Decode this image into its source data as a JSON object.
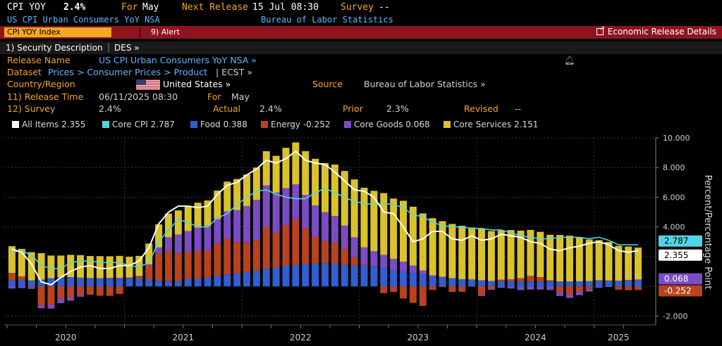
{
  "header": {
    "ticker": "CPI YOY",
    "value": "2.4%",
    "for_label": "For",
    "for_value": "May",
    "next_release_label": "Next Release",
    "next_release_value": "15 Jul 08:30",
    "survey_label": "Survey",
    "survey_value": "--",
    "subtitle": "US CPI Urban Consumers YoY NSA",
    "source_name": "Bureau of Labor Statistics"
  },
  "toolbar": {
    "tab_label": "CPI YOY Index",
    "alert_label": "9) Alert",
    "econ_label": "Economic Release Details"
  },
  "desc_bar": {
    "security_desc": "1) Security Description",
    "des": "DES »"
  },
  "info": {
    "release_name_label": "Release Name",
    "release_name_value": "US CPI Urban Consumers YoY NSA »",
    "dataset_label": "Dataset",
    "dataset_value": "Prices > Consumer Prices > Product",
    "dataset_suffix": "| ECST »",
    "country_label": "Country/Region",
    "country_value": "United States »",
    "source_label": "Source",
    "source_value": "Bureau of Labor Statistics »",
    "release_time_label": "11) Release Time",
    "release_time_value": "06/11/2025 08:30",
    "for_label": "For",
    "for_value": "May",
    "survey_label": "12) Survey",
    "survey_value": "2.4%",
    "actual_label": "Actual",
    "actual_value": "2.4%",
    "prior_label": "Prior",
    "prior_value": "2.3%",
    "revised_label": "Revised",
    "revised_value": "--"
  },
  "legend": [
    {
      "label": "All Items 2.355",
      "color": "#ffffff"
    },
    {
      "label": "Core CPI 2.787",
      "color": "#4fd6e6"
    },
    {
      "label": "Food 0.388",
      "color": "#2f5fd0"
    },
    {
      "label": "Energy -0.252",
      "color": "#b8431e"
    },
    {
      "label": "Core Goods 0.068",
      "color": "#7b4cc4"
    },
    {
      "label": "Core Services 2.151",
      "color": "#d9c22c"
    }
  ],
  "chart_data": {
    "type": "bar",
    "title": "",
    "ylabel": "Percent/Percentage Point",
    "ylim": [
      -2.6,
      10.0
    ],
    "y_ticks": [
      "10.000",
      "8.000",
      "6.000",
      "4.000",
      "2.000",
      "-2.000"
    ],
    "x_ticks": [
      "2020",
      "2021",
      "2022",
      "2023",
      "2024",
      "2025"
    ],
    "start": "2020-01",
    "end": "2025-05",
    "series": [
      {
        "name": "Food",
        "color": "#2f5fd0",
        "values": [
          0.42,
          0.41,
          0.4,
          0.45,
          0.55,
          0.62,
          0.62,
          0.58,
          0.56,
          0.55,
          0.52,
          0.52,
          0.52,
          0.5,
          0.48,
          0.4,
          0.35,
          0.34,
          0.48,
          0.5,
          0.58,
          0.72,
          0.8,
          0.86,
          0.96,
          1.06,
          1.18,
          1.26,
          1.38,
          1.44,
          1.5,
          1.54,
          1.56,
          1.52,
          1.42,
          1.4,
          1.38,
          1.3,
          1.22,
          1.1,
          0.98,
          0.9,
          0.78,
          0.64,
          0.58,
          0.52,
          0.48,
          0.44,
          0.4,
          0.36,
          0.35,
          0.34,
          0.33,
          0.32,
          0.32,
          0.33,
          0.33,
          0.33,
          0.34,
          0.35,
          0.37,
          0.37,
          0.38,
          0.38,
          0.39
        ]
      },
      {
        "name": "Energy",
        "color": "#b8431e",
        "values": [
          0.48,
          0.26,
          -0.05,
          -1.28,
          -1.22,
          -0.82,
          -0.75,
          -0.58,
          -0.52,
          -0.62,
          -0.64,
          -0.52,
          0.02,
          0.15,
          0.9,
          1.82,
          2.05,
          1.9,
          1.82,
          1.85,
          1.86,
          2.16,
          2.4,
          2.12,
          2.0,
          2.06,
          2.82,
          2.35,
          2.73,
          3.08,
          2.4,
          1.81,
          1.48,
          1.42,
          1.12,
          0.58,
          0.06,
          0.02,
          -0.46,
          -0.38,
          -0.82,
          -1.12,
          -1.32,
          -0.25,
          -0.05,
          -0.38,
          -0.36,
          -0.02,
          -0.58,
          -0.16,
          0.1,
          0.14,
          0.22,
          0.38,
          0.3,
          0.08,
          -0.4,
          -0.54,
          -0.38,
          -0.2,
          0.04,
          0.02,
          -0.22,
          -0.26,
          -0.25
        ]
      },
      {
        "name": "Core Goods",
        "color": "#7b4cc4",
        "values": [
          -0.15,
          -0.12,
          -0.12,
          -0.2,
          -0.28,
          -0.32,
          -0.22,
          -0.12,
          -0.05,
          -0.02,
          0.05,
          0.05,
          0.05,
          0.05,
          0.1,
          0.4,
          0.9,
          1.25,
          1.42,
          1.6,
          1.62,
          1.65,
          1.85,
          2.15,
          2.45,
          2.7,
          2.8,
          2.7,
          2.5,
          2.35,
          2.25,
          2.1,
          1.95,
          1.8,
          1.55,
          1.32,
          1.18,
          1.05,
          0.9,
          0.75,
          0.68,
          0.5,
          0.28,
          0.1,
          0.06,
          0.02,
          -0.02,
          0.02,
          -0.08,
          -0.08,
          -0.1,
          -0.15,
          -0.25,
          -0.22,
          -0.22,
          -0.25,
          -0.25,
          -0.24,
          -0.22,
          -0.15,
          -0.1,
          -0.05,
          -0.02,
          0.05,
          0.07
        ]
      },
      {
        "name": "Core Services",
        "color": "#d9c22c",
        "values": [
          1.8,
          1.85,
          1.9,
          1.78,
          1.52,
          1.45,
          1.5,
          1.52,
          1.48,
          1.48,
          1.45,
          1.48,
          1.4,
          1.35,
          1.4,
          1.55,
          1.6,
          1.62,
          1.68,
          1.68,
          1.72,
          1.92,
          2.0,
          2.1,
          2.12,
          2.18,
          2.3,
          2.48,
          2.72,
          2.82,
          2.95,
          3.14,
          3.31,
          3.46,
          3.68,
          3.9,
          4.02,
          4.06,
          4.16,
          4.06,
          4.1,
          3.96,
          3.85,
          3.85,
          3.75,
          3.66,
          3.6,
          3.5,
          3.48,
          3.36,
          3.31,
          3.31,
          3.2,
          3.1,
          3.05,
          3.06,
          3.13,
          3.08,
          2.97,
          2.8,
          2.7,
          2.6,
          2.35,
          2.25,
          2.15
        ]
      },
      {
        "name": "All Items",
        "color": "#ffffff",
        "type": "line",
        "values": [
          2.5,
          2.3,
          1.5,
          0.3,
          0.1,
          0.6,
          1.0,
          1.3,
          1.4,
          1.2,
          1.2,
          1.4,
          1.4,
          1.7,
          2.6,
          4.2,
          5.0,
          5.4,
          5.4,
          5.3,
          5.4,
          6.2,
          6.8,
          7.0,
          7.5,
          7.9,
          8.5,
          8.3,
          8.6,
          9.1,
          8.5,
          8.3,
          8.2,
          7.7,
          7.1,
          6.5,
          6.4,
          6.0,
          5.0,
          4.9,
          4.0,
          3.0,
          3.2,
          3.7,
          3.7,
          3.2,
          3.1,
          3.4,
          3.1,
          3.2,
          3.5,
          3.4,
          3.3,
          3.0,
          2.9,
          2.5,
          2.4,
          2.6,
          2.7,
          2.9,
          3.0,
          2.8,
          2.4,
          2.3,
          2.4
        ]
      },
      {
        "name": "Core CPI",
        "color": "#4fd6e6",
        "type": "line",
        "values": [
          2.3,
          2.4,
          2.1,
          1.4,
          1.2,
          1.2,
          1.6,
          1.7,
          1.7,
          1.6,
          1.6,
          1.6,
          1.4,
          1.3,
          1.6,
          3.0,
          3.8,
          4.5,
          4.3,
          4.0,
          4.0,
          4.6,
          4.9,
          5.5,
          6.0,
          6.4,
          6.5,
          6.2,
          6.0,
          5.9,
          5.9,
          6.3,
          6.6,
          6.3,
          6.0,
          5.7,
          5.6,
          5.5,
          5.6,
          5.5,
          5.3,
          4.8,
          4.7,
          4.3,
          4.1,
          4.0,
          4.0,
          3.9,
          3.9,
          3.8,
          3.8,
          3.6,
          3.4,
          3.3,
          3.2,
          3.2,
          3.3,
          3.3,
          3.3,
          3.2,
          3.3,
          3.1,
          2.8,
          2.8,
          2.8
        ]
      }
    ],
    "end_labels": {
      "core_cpi": "2.787",
      "all_items": "2.355",
      "core_goods": "0.068",
      "energy": "-0.252"
    }
  }
}
